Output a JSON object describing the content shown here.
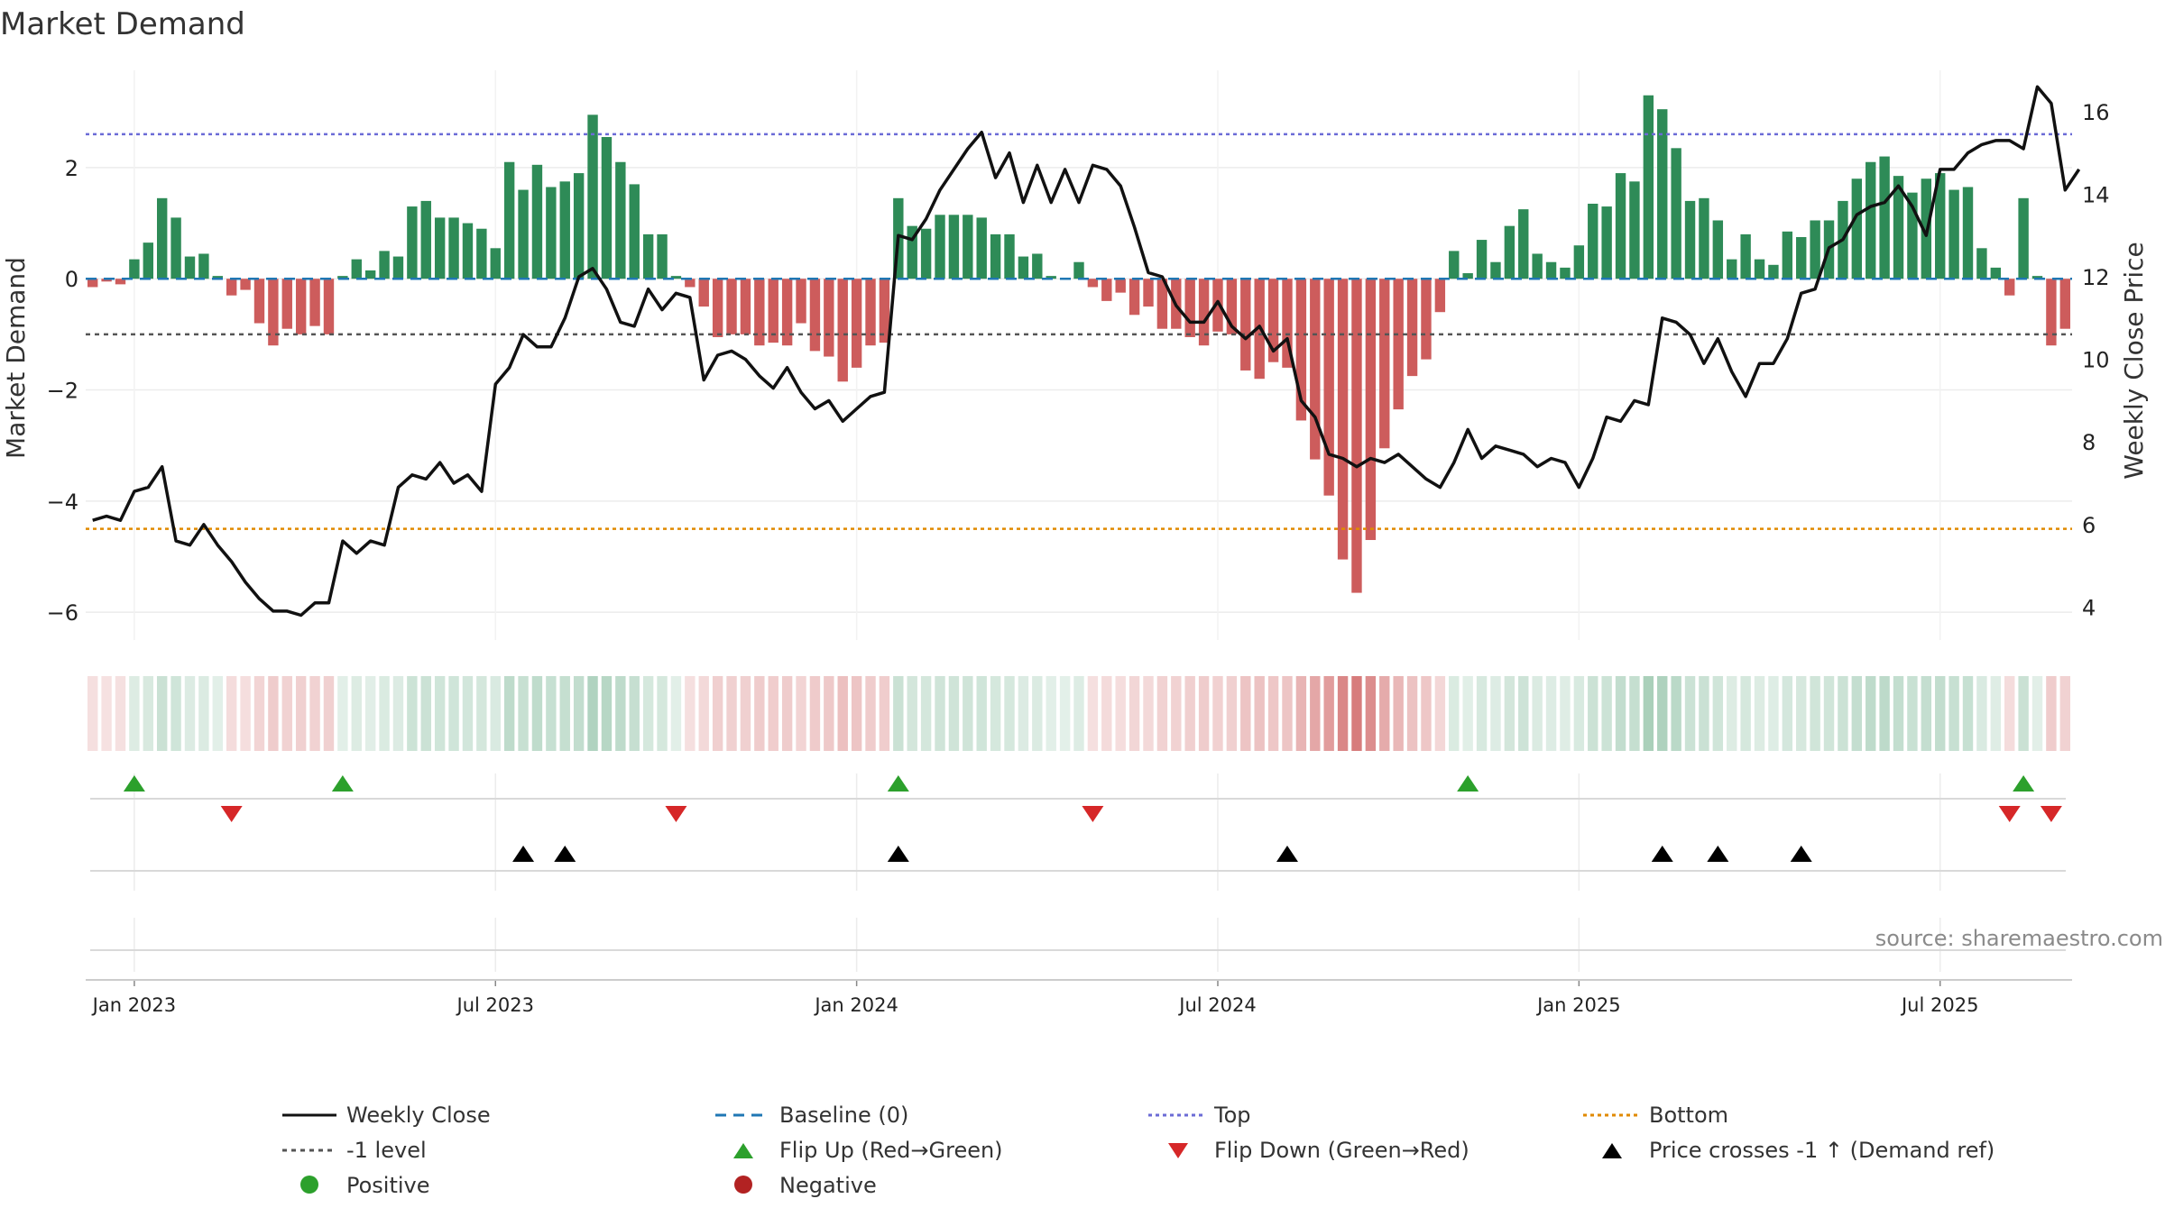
{
  "chart_data": {
    "type": "bar",
    "title": "Market Demand",
    "ylabel": "Market Demand",
    "y2label": "Weekly Close Price",
    "ylim": [
      -6.5,
      3.75
    ],
    "y2lim": [
      3.2,
      17.0
    ],
    "yticks": [
      -6,
      -4,
      -2,
      0,
      2
    ],
    "yticklabels": [
      "−6",
      "−4",
      "−2",
      "0",
      "2"
    ],
    "y2ticks": [
      4,
      6,
      8,
      10,
      12,
      14,
      16
    ],
    "y2ticklabels": [
      "4",
      "6",
      "8",
      "10",
      "12",
      "14",
      "16"
    ],
    "xticks": [
      {
        "label": "Jan 2023",
        "index": 3
      },
      {
        "label": "Jul 2023",
        "index": 29
      },
      {
        "label": "Jan 2024",
        "index": 55
      },
      {
        "label": "Jul 2024",
        "index": 81
      },
      {
        "label": "Jan 2025",
        "index": 107
      },
      {
        "label": "Jul 2025",
        "index": 133
      }
    ],
    "reference_lines": {
      "top": 2.6,
      "bottom": -4.5,
      "minus_one": -1.0,
      "baseline": 0
    },
    "demand": [
      -0.15,
      -0.05,
      -0.1,
      0.35,
      0.65,
      1.45,
      1.1,
      0.4,
      0.45,
      0.05,
      -0.3,
      -0.2,
      -0.8,
      -1.2,
      -0.9,
      -1.0,
      -0.85,
      -1.0,
      0.05,
      0.35,
      0.15,
      0.5,
      0.4,
      1.3,
      1.4,
      1.1,
      1.1,
      1.0,
      0.9,
      0.55,
      2.1,
      1.6,
      2.05,
      1.65,
      1.75,
      1.9,
      2.95,
      2.55,
      2.1,
      1.7,
      0.8,
      0.8,
      0.05,
      -0.15,
      -0.5,
      -1.05,
      -1.0,
      -1.0,
      -1.2,
      -1.15,
      -1.2,
      -0.8,
      -1.3,
      -1.4,
      -1.85,
      -1.6,
      -1.2,
      -1.15,
      1.45,
      0.95,
      0.9,
      1.15,
      1.15,
      1.15,
      1.1,
      0.8,
      0.8,
      0.4,
      0.45,
      0.05,
      0.0,
      0.3,
      -0.15,
      -0.4,
      -0.25,
      -0.65,
      -0.5,
      -0.9,
      -0.9,
      -1.05,
      -1.2,
      -0.95,
      -1.0,
      -1.65,
      -1.8,
      -1.5,
      -1.6,
      -2.55,
      -3.25,
      -3.9,
      -5.05,
      -5.65,
      -4.7,
      -3.05,
      -2.35,
      -1.75,
      -1.45,
      -0.6,
      0.5,
      0.1,
      0.7,
      0.3,
      0.95,
      1.25,
      0.45,
      0.3,
      0.2,
      0.6,
      1.35,
      1.3,
      1.9,
      1.75,
      3.3,
      3.05,
      2.35,
      1.4,
      1.45,
      1.05,
      0.35,
      0.8,
      0.35,
      0.25,
      0.85,
      0.75,
      1.05,
      1.05,
      1.4,
      1.8,
      2.1,
      2.2,
      1.85,
      1.55,
      1.8,
      1.9,
      1.6,
      1.65,
      0.55,
      0.2,
      -0.3,
      1.45,
      0.05,
      -1.2,
      -0.9
    ],
    "close": [
      6.1,
      6.2,
      6.1,
      6.8,
      6.9,
      7.4,
      5.6,
      5.5,
      6.0,
      5.5,
      5.1,
      4.6,
      4.2,
      3.9,
      3.9,
      3.8,
      4.1,
      4.1,
      5.6,
      5.3,
      5.6,
      5.5,
      6.9,
      7.2,
      7.1,
      7.5,
      7.0,
      7.2,
      6.8,
      9.4,
      9.8,
      10.6,
      10.3,
      10.3,
      11.0,
      12.0,
      12.2,
      11.7,
      10.9,
      10.8,
      11.7,
      11.2,
      11.6,
      11.5,
      9.5,
      10.1,
      10.2,
      10.0,
      9.6,
      9.3,
      9.8,
      9.2,
      8.8,
      9.0,
      8.5,
      8.8,
      9.1,
      9.2,
      13.0,
      12.9,
      13.4,
      14.1,
      14.6,
      15.1,
      15.5,
      14.4,
      15.0,
      13.8,
      14.7,
      13.8,
      14.6,
      13.8,
      14.7,
      14.6,
      14.2,
      13.2,
      12.1,
      12.0,
      11.3,
      10.9,
      10.9,
      11.4,
      10.8,
      10.5,
      10.8,
      10.2,
      10.5,
      9.0,
      8.6,
      7.7,
      7.6,
      7.4,
      7.6,
      7.5,
      7.7,
      7.4,
      7.1,
      6.9,
      7.5,
      8.3,
      7.6,
      7.9,
      7.8,
      7.7,
      7.4,
      7.6,
      7.5,
      6.9,
      7.6,
      8.6,
      8.5,
      9.0,
      8.9,
      11.0,
      10.9,
      10.6,
      9.9,
      10.5,
      9.7,
      9.1,
      9.9,
      9.9,
      10.5,
      11.6,
      11.7,
      12.7,
      12.9,
      13.5,
      13.7,
      13.8,
      14.2,
      13.7,
      13.0,
      14.6,
      14.6,
      15.0,
      15.2,
      15.3,
      15.3,
      15.1,
      16.6,
      16.2,
      14.1,
      14.6
    ],
    "flip_up_indices": [
      3,
      18,
      58,
      99,
      139
    ],
    "flip_down_indices": [
      10,
      42,
      72,
      138,
      141
    ],
    "price_cross_indices": [
      31,
      34,
      58,
      86,
      113,
      117,
      123
    ],
    "colors": {
      "positive_bar": "#2e8b57",
      "negative_bar": "#cd5c5c",
      "close_line": "#111111",
      "baseline": "#1f77b4",
      "top_line": "#6b6bd6",
      "bottom_line": "#e08a00",
      "minus_one_line": "#555555",
      "flip_up": "#2ca02c",
      "flip_down": "#d62728",
      "price_cross": "#000000",
      "positive_dot": "#2ca02c",
      "negative_dot": "#b22222"
    },
    "legend": {
      "weekly_close": "Weekly Close",
      "baseline": "Baseline (0)",
      "top": "Top",
      "bottom": "Bottom",
      "minus_one_level": "-1 level",
      "flip_up": "Flip Up (Red→Green)",
      "flip_down": "Flip Down (Green→Red)",
      "price_crosses": "Price crosses -1 ↑ (Demand ref)",
      "positive": "Positive",
      "negative": "Negative"
    },
    "source": "source: sharemaestro.com"
  }
}
